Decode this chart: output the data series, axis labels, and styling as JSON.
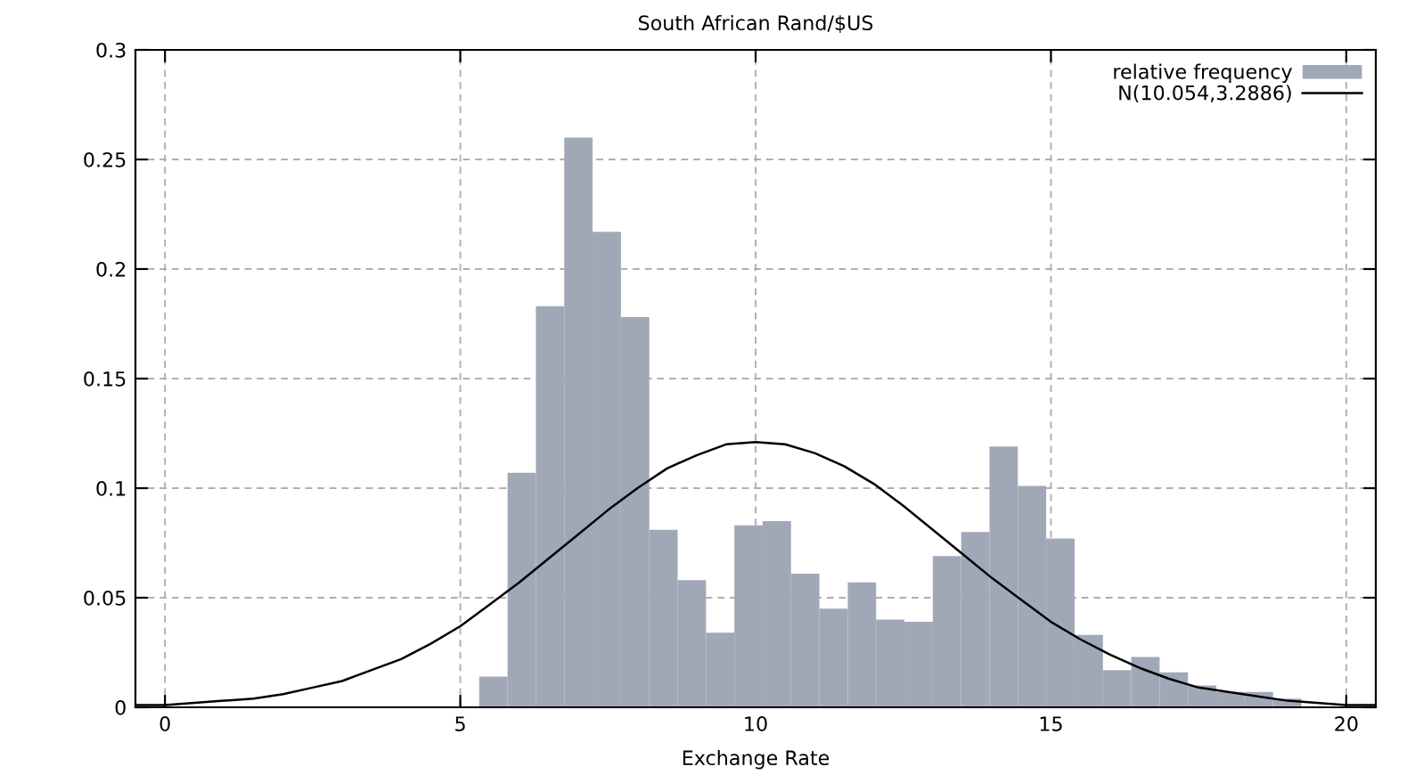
{
  "chart_data": {
    "type": "histogram",
    "title": "South African Rand/$US",
    "xlabel": "Exchange Rate",
    "bins": [
      5.32,
      5.8,
      6.28,
      6.76,
      7.24,
      7.72,
      8.2,
      8.68,
      9.16,
      9.64,
      10.12,
      10.6,
      11.08,
      11.56,
      12.04,
      12.52,
      13.0,
      13.48,
      13.96,
      14.44,
      14.92,
      15.4,
      15.88,
      16.36,
      16.84,
      17.32,
      17.8,
      18.28,
      18.76,
      19.24
    ],
    "series": [
      {
        "name": "relative frequency",
        "color": "#a0a8b8",
        "values": [
          0.014,
          0.107,
          0.183,
          0.26,
          0.217,
          0.178,
          0.081,
          0.058,
          0.034,
          0.083,
          0.085,
          0.061,
          0.045,
          0.057,
          0.04,
          0.039,
          0.069,
          0.08,
          0.119,
          0.101,
          0.077,
          0.033,
          0.017,
          0.023,
          0.016,
          0.01,
          0.007,
          0.007,
          0.004
        ]
      },
      {
        "name": "N(10.054,3.2886)",
        "type": "line",
        "color": "#000000",
        "x": [
          -0.5,
          0,
          0.5,
          1,
          1.5,
          2,
          2.5,
          3,
          3.5,
          4,
          4.5,
          5,
          5.5,
          6,
          6.5,
          7,
          7.5,
          8,
          8.5,
          9,
          9.5,
          10,
          10.5,
          11,
          11.5,
          12,
          12.5,
          13,
          13.5,
          14,
          14.5,
          15,
          15.5,
          16,
          16.5,
          17,
          17.5,
          18,
          18.5,
          19,
          19.5,
          20,
          20.5
        ],
        "values": [
          0.001,
          0.001,
          0.002,
          0.003,
          0.004,
          0.006,
          0.009,
          0.012,
          0.017,
          0.022,
          0.029,
          0.037,
          0.047,
          0.057,
          0.068,
          0.079,
          0.09,
          0.1,
          0.109,
          0.115,
          0.12,
          0.121,
          0.12,
          0.116,
          0.11,
          0.102,
          0.092,
          0.081,
          0.07,
          0.059,
          0.049,
          0.039,
          0.031,
          0.024,
          0.018,
          0.013,
          0.009,
          0.007,
          0.005,
          0.003,
          0.002,
          0.001,
          0.001
        ]
      }
    ],
    "xlim": [
      -0.5,
      20.5
    ],
    "ylim": [
      0,
      0.3
    ],
    "xticks": [
      0,
      5,
      10,
      15,
      20
    ],
    "yticks": [
      0,
      0.05,
      0.1,
      0.15,
      0.2,
      0.25,
      0.3
    ],
    "grid": true,
    "legend": "top right"
  }
}
